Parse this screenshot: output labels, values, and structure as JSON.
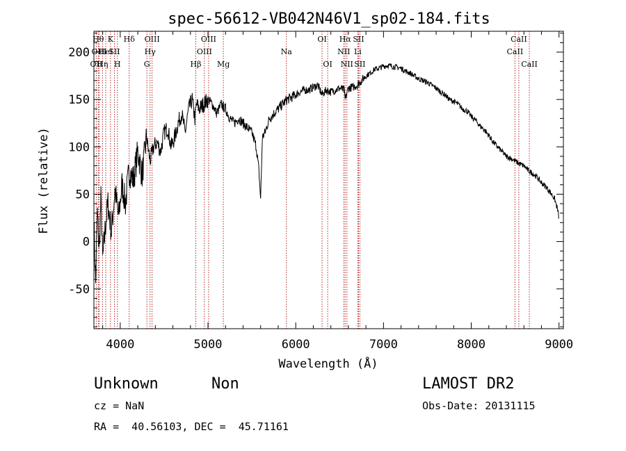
{
  "chart_data": {
    "type": "line",
    "title": "spec-56612-VB042N46V1_sp02-184.fits",
    "xlabel": "Wavelength (Å)",
    "ylabel": "Flux (relative)",
    "xlim": [
      3700,
      9050
    ],
    "ylim": [
      -92,
      222
    ],
    "x_ticks": [
      4000,
      5000,
      6000,
      7000,
      8000,
      9000
    ],
    "y_ticks": [
      -50,
      0,
      50,
      100,
      150,
      200
    ],
    "x_tick_labels": [
      "4000",
      "5000",
      "6000",
      "7000",
      "8000",
      "9000"
    ],
    "y_tick_labels": [
      "-50",
      "0",
      "50",
      "100",
      "150",
      "200"
    ],
    "grid": false,
    "legend": "none",
    "line_color": "#000000",
    "marker_line_color": "#b22222",
    "series": [
      {
        "x": [
          3700,
          3720,
          3740,
          3760,
          3780,
          3800,
          3830,
          3860,
          3900,
          3940,
          3980,
          4020,
          4060,
          4100,
          4150,
          4200,
          4250,
          4300,
          4340,
          4380,
          4420,
          4460,
          4500,
          4540,
          4580,
          4620,
          4660,
          4700,
          4740,
          4780,
          4820,
          4850,
          4870,
          4900,
          4950,
          5000,
          5050,
          5100,
          5150,
          5200,
          5250,
          5300,
          5350,
          5400,
          5450,
          5500,
          5550,
          5580,
          5600,
          5620,
          5650,
          5700,
          5750,
          5800,
          5850,
          5900,
          5950,
          6000,
          6050,
          6100,
          6150,
          6200,
          6250,
          6300,
          6350,
          6400,
          6450,
          6500,
          6550,
          6563,
          6600,
          6650,
          6700,
          6750,
          6800,
          6850,
          6900,
          6950,
          7000,
          7050,
          7100,
          7150,
          7200,
          7250,
          7300,
          7350,
          7400,
          7450,
          7500,
          7550,
          7600,
          7650,
          7700,
          7750,
          7800,
          7850,
          7900,
          7950,
          8000,
          8050,
          8100,
          8150,
          8200,
          8250,
          8300,
          8350,
          8400,
          8450,
          8500,
          8550,
          8600,
          8650,
          8700,
          8750,
          8800,
          8850,
          8900,
          8950,
          8980,
          9000
        ],
        "y": [
          20,
          -45,
          30,
          -10,
          45,
          -20,
          15,
          40,
          10,
          55,
          25,
          60,
          40,
          75,
          65,
          95,
          70,
          110,
          85,
          100,
          105,
          95,
          115,
          120,
          100,
          110,
          125,
          135,
          115,
          140,
          150,
          130,
          145,
          140,
          145,
          150,
          145,
          135,
          145,
          140,
          130,
          125,
          130,
          125,
          120,
          115,
          100,
          75,
          45,
          110,
          115,
          130,
          135,
          140,
          145,
          150,
          152,
          155,
          158,
          160,
          160,
          163,
          165,
          155,
          160,
          158,
          160,
          162,
          160,
          150,
          162,
          163,
          165,
          170,
          175,
          178,
          182,
          183,
          185,
          186,
          185,
          184,
          183,
          180,
          178,
          175,
          172,
          170,
          168,
          165,
          162,
          158,
          155,
          150,
          148,
          145,
          140,
          138,
          132,
          128,
          122,
          118,
          112,
          105,
          100,
          95,
          90,
          88,
          85,
          82,
          80,
          75,
          72,
          68,
          62,
          58,
          52,
          45,
          35,
          25
        ]
      }
    ],
    "line_markers": [
      {
        "x": 3727,
        "label": "OII",
        "row": 2
      },
      {
        "x": 3750,
        "label": "Hθ",
        "row": 0
      },
      {
        "x": 3760,
        "label": "OIII",
        "row": 1
      },
      {
        "x": 3798,
        "label": "Hη",
        "row": 2
      },
      {
        "x": 3835,
        "label": "HeI",
        "row": 1
      },
      {
        "x": 3889,
        "label": "K",
        "row": 0
      },
      {
        "x": 3934,
        "label": "SII",
        "row": 1
      },
      {
        "x": 3968,
        "label": "H",
        "row": 2
      },
      {
        "x": 4102,
        "label": "Hδ",
        "row": 0
      },
      {
        "x": 4304,
        "label": "G",
        "row": 2
      },
      {
        "x": 4340,
        "label": "Hγ",
        "row": 1
      },
      {
        "x": 4363,
        "label": "OIII",
        "row": 0
      },
      {
        "x": 4861,
        "label": "Hβ",
        "row": 2
      },
      {
        "x": 4959,
        "label": "OIII",
        "row": 1
      },
      {
        "x": 5007,
        "label": "OIII",
        "row": 0
      },
      {
        "x": 5175,
        "label": "Mg",
        "row": 2
      },
      {
        "x": 5893,
        "label": "Na",
        "row": 1
      },
      {
        "x": 6300,
        "label": "OI",
        "row": 0
      },
      {
        "x": 6364,
        "label": "OI",
        "row": 2
      },
      {
        "x": 6548,
        "label": "NII",
        "row": 1
      },
      {
        "x": 6563,
        "label": "Hα",
        "row": 0
      },
      {
        "x": 6583,
        "label": "NII",
        "row": 2
      },
      {
        "x": 6707,
        "label": "Li",
        "row": 1
      },
      {
        "x": 6716,
        "label": "SII",
        "row": 0
      },
      {
        "x": 6731,
        "label": "SII",
        "row": 2
      },
      {
        "x": 8498,
        "label": "CaII",
        "row": 1
      },
      {
        "x": 8542,
        "label": "CaII",
        "row": 0
      },
      {
        "x": 8662,
        "label": "CaII",
        "row": 2
      }
    ]
  },
  "info": {
    "class_label": "Unknown",
    "subclass_label": "Non",
    "survey_label": "LAMOST DR2",
    "redshift": "cz = NaN",
    "obs_date": "Obs-Date: 20131115",
    "coords": "RA =  40.56103, DEC =  45.71161"
  }
}
